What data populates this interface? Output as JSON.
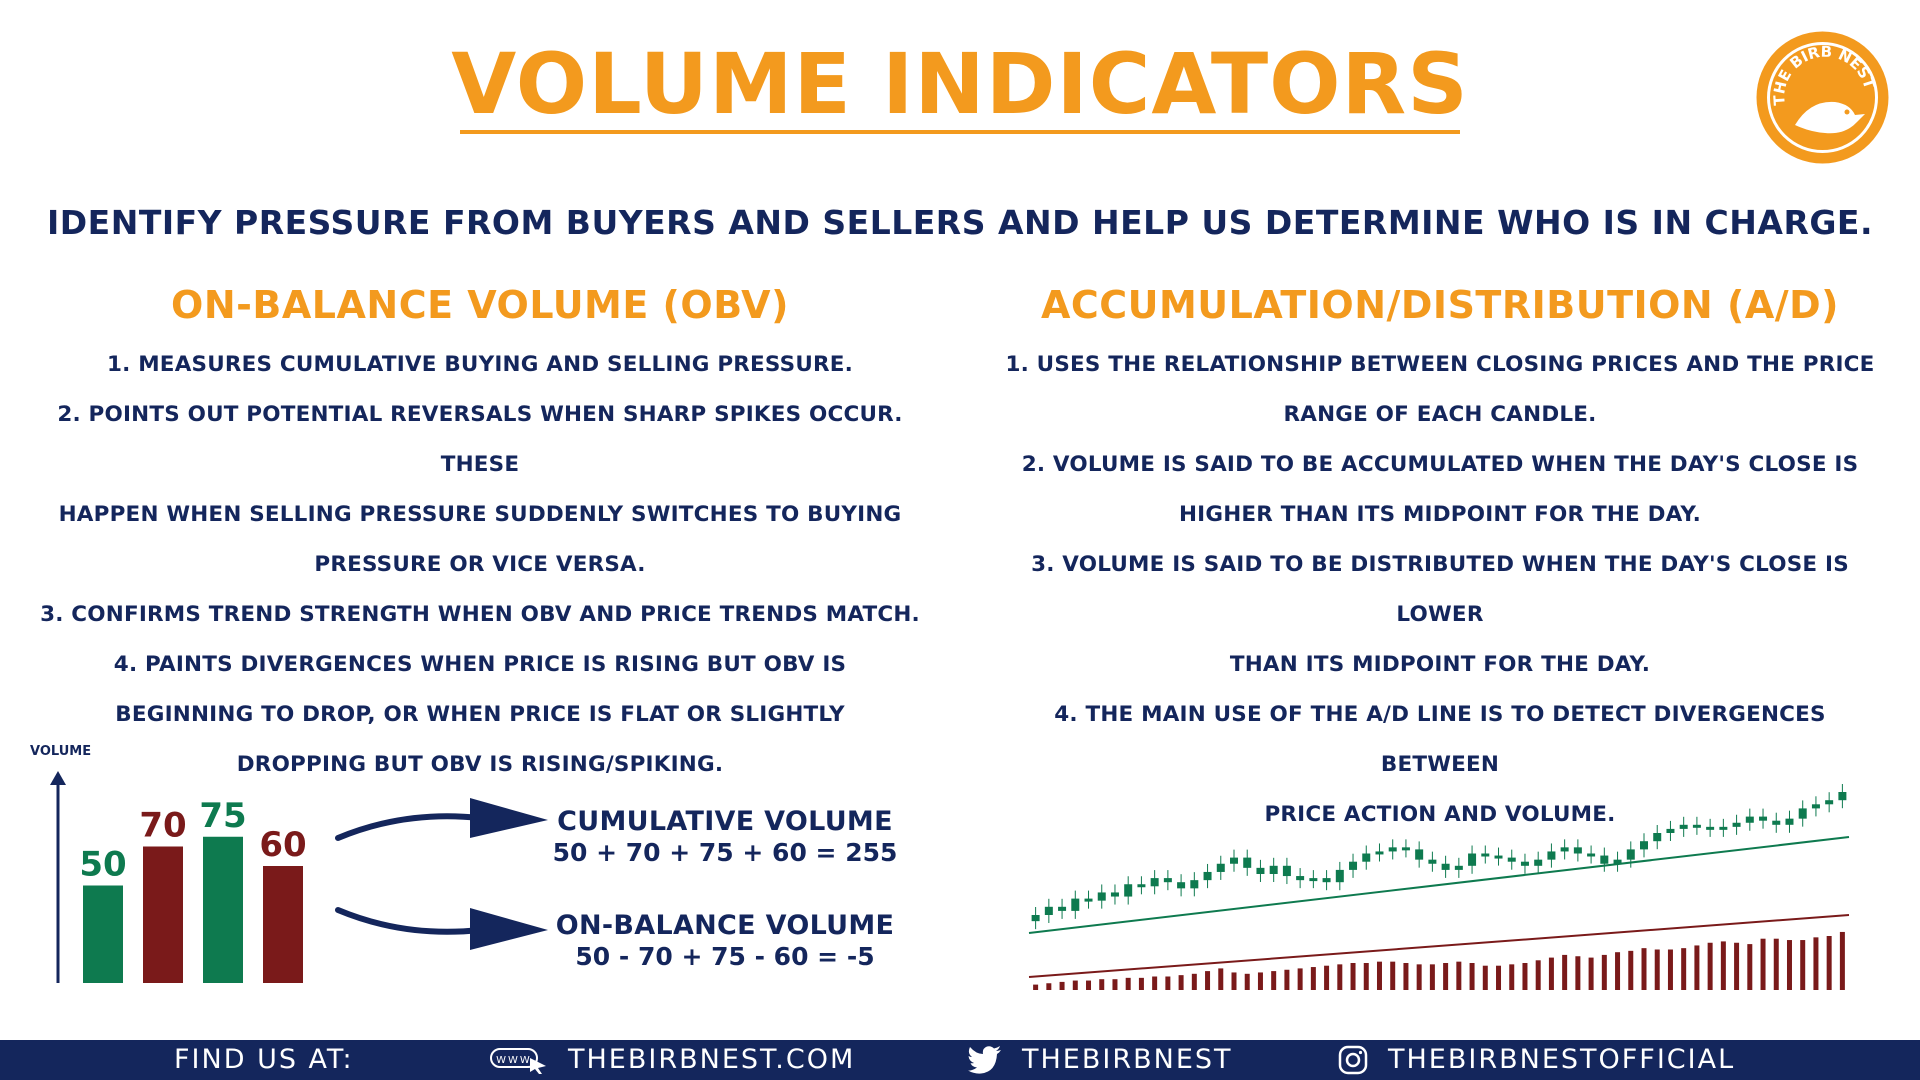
{
  "header": {
    "title": "VOLUME INDICATORS",
    "subtitle": "IDENTIFY PRESSURE FROM BUYERS AND SELLERS AND HELP US DETERMINE WHO IS IN CHARGE.",
    "logo_text": "THE BIRB NEST",
    "logo_color": "#f39a1e"
  },
  "obv": {
    "title": "ON-BALANCE VOLUME (OBV)",
    "lines": [
      "1. MEASURES CUMULATIVE BUYING AND SELLING PRESSURE.",
      "2. POINTS OUT POTENTIAL REVERSALS WHEN SHARP SPIKES OCCUR. THESE",
      "HAPPEN WHEN SELLING PRESSURE SUDDENLY SWITCHES TO BUYING",
      "PRESSURE OR VICE VERSA.",
      "3. CONFIRMS TREND STRENGTH WHEN OBV AND PRICE TRENDS MATCH.",
      "4. PAINTS DIVERGENCES WHEN PRICE IS RISING BUT OBV IS",
      "BEGINNING TO DROP, OR WHEN PRICE IS FLAT OR SLIGHTLY",
      "DROPPING BUT OBV IS RISING/SPIKING."
    ]
  },
  "ad": {
    "title": "ACCUMULATION/DISTRIBUTION (A/D)",
    "lines": [
      "1. USES THE RELATIONSHIP BETWEEN CLOSING PRICES AND THE PRICE",
      "RANGE OF EACH CANDLE.",
      "2. VOLUME IS SAID TO BE ACCUMULATED WHEN THE DAY'S CLOSE IS",
      "HIGHER THAN ITS MIDPOINT FOR THE DAY.",
      "3. VOLUME IS SAID TO BE DISTRIBUTED WHEN THE DAY'S CLOSE IS LOWER",
      "THAN ITS MIDPOINT FOR THE DAY.",
      "4. THE MAIN USE OF THE A/D LINE IS TO DETECT DIVERGENCES BETWEEN",
      "PRICE ACTION AND VOLUME."
    ]
  },
  "volume_bars": {
    "axis_label": "VOLUME",
    "bars": [
      {
        "label": "50",
        "value": 50,
        "color": "#0e7a4f"
      },
      {
        "label": "70",
        "value": 70,
        "color": "#7a1a1a"
      },
      {
        "label": "75",
        "value": 75,
        "color": "#0e7a4f"
      },
      {
        "label": "60",
        "value": 60,
        "color": "#7a1a1a"
      }
    ]
  },
  "formulas": {
    "cumulative_title": "CUMULATIVE VOLUME",
    "cumulative_expr": "50 + 70 + 75 + 60 = 255",
    "obv_title": "ON-BALANCE VOLUME",
    "obv_expr": "50 - 70 + 75 - 60 = -5"
  },
  "ad_chart": {
    "up_color": "#0e7a4f",
    "down_color": "#7a1a1a",
    "closes": [
      30,
      34,
      32,
      38,
      37,
      41,
      39,
      45,
      44,
      48,
      46,
      43,
      47,
      51,
      55,
      58,
      53,
      50,
      54,
      49,
      47,
      48,
      46,
      52,
      56,
      60,
      61,
      63,
      62,
      57,
      55,
      52,
      54,
      60,
      59,
      58,
      56,
      54,
      57,
      61,
      63,
      60,
      59,
      55,
      57,
      62,
      66,
      70,
      72,
      74,
      73,
      72,
      73,
      75,
      78,
      76,
      74,
      77,
      82,
      84,
      86,
      90
    ],
    "volumes": [
      4,
      5,
      6,
      7,
      7,
      8,
      8,
      9,
      9,
      10,
      10,
      11,
      12,
      14,
      16,
      13,
      12,
      13,
      14,
      15,
      16,
      17,
      18,
      19,
      20,
      20,
      21,
      21,
      20,
      19,
      19,
      20,
      21,
      20,
      18,
      18,
      19,
      20,
      22,
      24,
      26,
      25,
      24,
      26,
      28,
      29,
      31,
      30,
      30,
      31,
      33,
      35,
      36,
      35,
      34,
      38,
      38,
      37,
      37,
      39,
      40,
      43
    ]
  },
  "footer": {
    "find_us": "FIND US AT:",
    "website": "THEBIRBNEST.COM",
    "twitter": "THEBIRBNEST",
    "instagram": "THEBIRBNESTOFFICIAL",
    "web_icon_text": "WWW"
  }
}
